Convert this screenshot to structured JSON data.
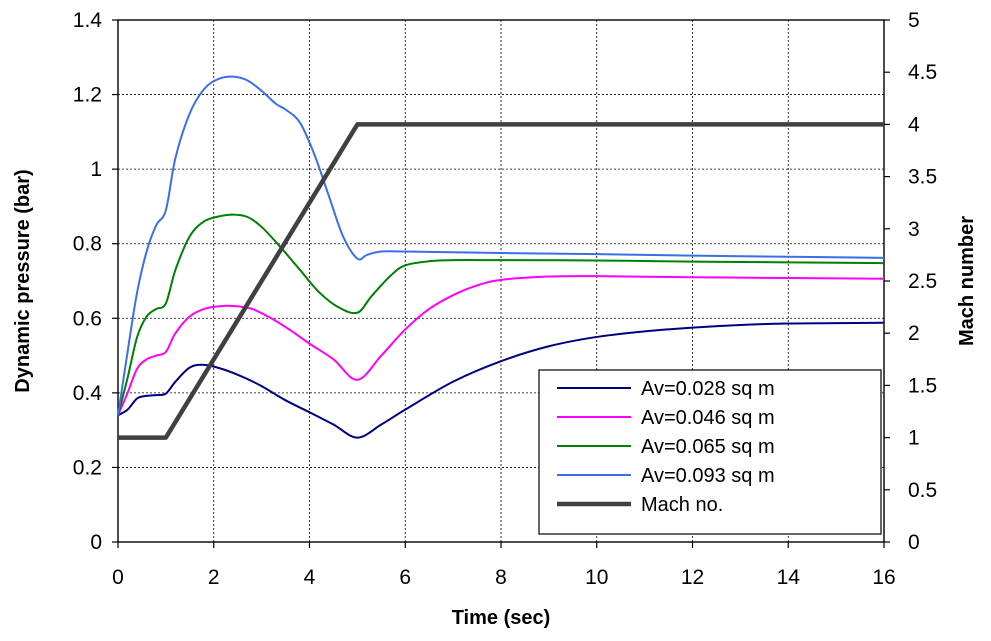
{
  "chart_data": {
    "type": "line",
    "xlabel": "Time (sec)",
    "ylabel": "Dynamic pressure (bar)",
    "y2label": "Mach number",
    "xlim": [
      0,
      16
    ],
    "ylim": [
      0,
      1.4
    ],
    "y2lim": [
      0,
      5
    ],
    "xticks": [
      "0",
      "2",
      "4",
      "6",
      "8",
      "10",
      "12",
      "14",
      "16"
    ],
    "yticks": [
      "0",
      "0.2",
      "0.4",
      "0.6",
      "0.8",
      "1",
      "1.2",
      "1.4"
    ],
    "y2ticks": [
      "0",
      "0.5",
      "1",
      "1.5",
      "2",
      "2.5",
      "3",
      "3.5",
      "4",
      "4.5",
      "5"
    ],
    "grid": true,
    "legend_position": "bottom-right",
    "series": [
      {
        "name": "Av=0.028 sq m",
        "color": "#000080",
        "axis": "left",
        "x": [
          0,
          0.2,
          0.4,
          0.6,
          0.8,
          1.0,
          1.2,
          1.5,
          1.8,
          2.2,
          2.6,
          3.0,
          3.5,
          4.0,
          4.5,
          5.0,
          5.5,
          6,
          7,
          8,
          9,
          10,
          11,
          12,
          13,
          14,
          15,
          16
        ],
        "y": [
          0.34,
          0.355,
          0.385,
          0.392,
          0.394,
          0.398,
          0.43,
          0.468,
          0.475,
          0.463,
          0.443,
          0.418,
          0.38,
          0.348,
          0.315,
          0.28,
          0.315,
          0.355,
          0.43,
          0.485,
          0.525,
          0.55,
          0.565,
          0.575,
          0.582,
          0.586,
          0.587,
          0.588
        ]
      },
      {
        "name": "Av=0.046 sq m",
        "color": "#ff00ff",
        "axis": "left",
        "x": [
          0,
          0.2,
          0.4,
          0.6,
          0.8,
          1.0,
          1.2,
          1.5,
          1.8,
          2.1,
          2.4,
          2.8,
          3.2,
          3.6,
          4.0,
          4.5,
          5.0,
          5.5,
          6,
          6.5,
          7,
          7.5,
          8,
          9,
          10,
          12,
          14,
          16
        ],
        "y": [
          0.34,
          0.4,
          0.465,
          0.49,
          0.5,
          0.51,
          0.56,
          0.605,
          0.625,
          0.632,
          0.633,
          0.625,
          0.6,
          0.568,
          0.532,
          0.49,
          0.435,
          0.5,
          0.57,
          0.625,
          0.662,
          0.688,
          0.703,
          0.712,
          0.713,
          0.71,
          0.708,
          0.706
        ]
      },
      {
        "name": "Av=0.065 sq m",
        "color": "#008000",
        "axis": "left",
        "x": [
          0,
          0.2,
          0.4,
          0.6,
          0.8,
          1.0,
          1.2,
          1.5,
          1.8,
          2.1,
          2.4,
          2.7,
          3.0,
          3.4,
          3.8,
          4.2,
          4.6,
          5.0,
          5.3,
          5.7,
          6.0,
          6.5,
          7,
          8,
          10,
          12,
          14,
          16
        ],
        "y": [
          0.34,
          0.44,
          0.55,
          0.605,
          0.625,
          0.64,
          0.73,
          0.82,
          0.86,
          0.873,
          0.878,
          0.872,
          0.845,
          0.79,
          0.73,
          0.67,
          0.63,
          0.615,
          0.66,
          0.715,
          0.742,
          0.753,
          0.756,
          0.756,
          0.755,
          0.752,
          0.75,
          0.748
        ]
      },
      {
        "name": "Av=0.093 sq m",
        "color": "#3a6fe8",
        "axis": "left",
        "x": [
          0,
          0.2,
          0.4,
          0.6,
          0.8,
          1.0,
          1.2,
          1.5,
          1.8,
          2.1,
          2.4,
          2.7,
          3.0,
          3.3,
          3.5,
          3.8,
          4.1,
          4.4,
          4.7,
          5.0,
          5.2,
          5.5,
          6,
          7,
          8,
          10,
          12,
          14,
          16
        ],
        "y": [
          0.34,
          0.51,
          0.67,
          0.78,
          0.85,
          0.89,
          1.03,
          1.15,
          1.215,
          1.242,
          1.248,
          1.238,
          1.21,
          1.175,
          1.16,
          1.125,
          1.04,
          0.93,
          0.82,
          0.76,
          0.77,
          0.779,
          0.779,
          0.777,
          0.775,
          0.772,
          0.768,
          0.765,
          0.762
        ]
      },
      {
        "name": "Mach no.",
        "color": "#404040",
        "axis": "right",
        "x": [
          0,
          1,
          5,
          16
        ],
        "y": [
          1,
          1,
          4,
          4
        ]
      }
    ]
  }
}
